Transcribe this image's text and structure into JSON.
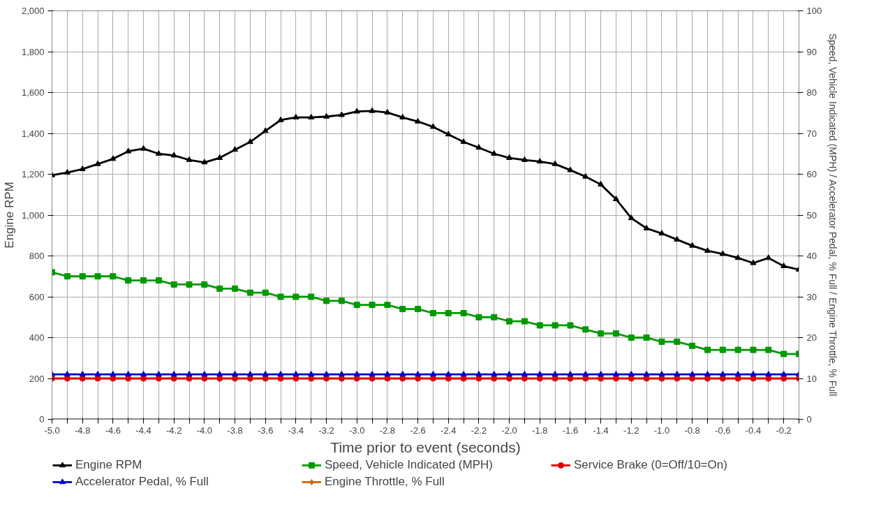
{
  "chart_data": {
    "type": "line",
    "xlabel": "Time prior to event (seconds)",
    "ylabel": "Engine RPM",
    "y2label": "Speed, Vehicle Indicated (MPH) / Accelerator Pedal, % Full / Engine Throttle, % Full",
    "x": [
      -5.0,
      -4.9,
      -4.8,
      -4.7,
      -4.6,
      -4.5,
      -4.4,
      -4.3,
      -4.2,
      -4.1,
      -4.0,
      -3.9,
      -3.8,
      -3.7,
      -3.6,
      -3.5,
      -3.4,
      -3.3,
      -3.2,
      -3.1,
      -3.0,
      -2.9,
      -2.8,
      -2.7,
      -2.6,
      -2.5,
      -2.4,
      -2.3,
      -2.2,
      -2.1,
      -2.0,
      -1.9,
      -1.8,
      -1.7,
      -1.6,
      -1.5,
      -1.4,
      -1.3,
      -1.2,
      -1.1,
      -1.0,
      -0.9,
      -0.8,
      -0.7,
      -0.6,
      -0.5,
      -0.4,
      -0.3,
      -0.2,
      -0.1
    ],
    "series": [
      {
        "name": "Engine RPM",
        "color": "#000000",
        "marker": "triangle",
        "values": [
          1195,
          1208,
          1225,
          1250,
          1275,
          1312,
          1325,
          1300,
          1292,
          1270,
          1258,
          1280,
          1320,
          1358,
          1412,
          1465,
          1478,
          1478,
          1482,
          1490,
          1507,
          1510,
          1502,
          1478,
          1458,
          1432,
          1395,
          1358,
          1330,
          1300,
          1280,
          1270,
          1262,
          1250,
          1220,
          1188,
          1150,
          1078,
          985,
          935,
          910,
          880,
          850,
          825,
          810,
          790,
          765,
          790,
          750,
          733
        ]
      },
      {
        "name": "Speed, Vehicle Indicated (MPH)",
        "color": "#009900",
        "marker": "square",
        "axis": "y2",
        "values": [
          36,
          35,
          35,
          35,
          35,
          34,
          34,
          34,
          33,
          33,
          33,
          32,
          32,
          31,
          31,
          30,
          30,
          30,
          29,
          29,
          28,
          28,
          28,
          27,
          27,
          26,
          26,
          26,
          25,
          25,
          24,
          24,
          23,
          23,
          23,
          22,
          21,
          21,
          20,
          20,
          19,
          19,
          18,
          17,
          17,
          17,
          17,
          17,
          16,
          16
        ]
      },
      {
        "name": "Service Brake (0=Off/10=On)",
        "color": "#dd0000",
        "marker": "circle",
        "axis": "y2",
        "values": [
          10,
          10,
          10,
          10,
          10,
          10,
          10,
          10,
          10,
          10,
          10,
          10,
          10,
          10,
          10,
          10,
          10,
          10,
          10,
          10,
          10,
          10,
          10,
          10,
          10,
          10,
          10,
          10,
          10,
          10,
          10,
          10,
          10,
          10,
          10,
          10,
          10,
          10,
          10,
          10,
          10,
          10,
          10,
          10,
          10,
          10,
          10,
          10,
          10,
          10
        ]
      },
      {
        "name": "Accelerator Pedal, % Full",
        "color": "#0000cc",
        "marker": "triangle",
        "axis": "y2",
        "values": [
          11,
          11,
          11,
          11,
          11,
          11,
          11,
          11,
          11,
          11,
          11,
          11,
          11,
          11,
          11,
          11,
          11,
          11,
          11,
          11,
          11,
          11,
          11,
          11,
          11,
          11,
          11,
          11,
          11,
          11,
          11,
          11,
          11,
          11,
          11,
          11,
          11,
          11,
          11,
          11,
          11,
          11,
          11,
          11,
          11,
          11,
          11,
          11,
          11,
          11
        ]
      },
      {
        "name": "Engine Throttle, % Full",
        "color": "#cc6600",
        "marker": "diamond",
        "axis": "y2",
        "values": [
          null,
          null,
          null,
          null,
          null,
          null,
          null,
          null,
          null,
          null,
          null,
          null,
          null,
          null,
          null,
          null,
          null,
          null,
          null,
          null,
          null,
          null,
          null,
          null,
          null,
          null,
          null,
          null,
          null,
          null,
          null,
          null,
          null,
          null,
          null,
          null,
          null,
          null,
          null,
          null,
          null,
          null,
          null,
          null,
          null,
          null,
          null,
          null,
          null,
          null
        ]
      }
    ],
    "xlim": [
      -5.0,
      -0.1
    ],
    "xticks": [
      {
        "value": -5.0,
        "label": "-5.0"
      },
      {
        "value": -4.9,
        "label": null
      },
      -4.8,
      {
        "value": -4.7,
        "label": null
      },
      -4.6,
      {
        "value": -4.5,
        "label": null
      },
      -4.4,
      {
        "value": -4.3,
        "label": null
      },
      -4.2,
      {
        "value": -4.1,
        "label": null
      },
      {
        "value": -4.0,
        "label": "-4.0"
      },
      {
        "value": -3.9,
        "label": null
      },
      -3.8,
      {
        "value": -3.7,
        "label": null
      },
      -3.6,
      {
        "value": -3.5,
        "label": null
      },
      -3.4,
      {
        "value": -3.3,
        "label": null
      },
      -3.2,
      {
        "value": -3.1,
        "label": null
      },
      {
        "value": -3.0,
        "label": "-3.0"
      },
      {
        "value": -2.9,
        "label": null
      },
      -2.8,
      {
        "value": -2.7,
        "label": null
      },
      -2.6,
      {
        "value": -2.5,
        "label": null
      },
      -2.4,
      {
        "value": -2.3,
        "label": null
      },
      -2.2,
      {
        "value": -2.1,
        "label": null
      },
      {
        "value": -2.0,
        "label": "-2.0"
      },
      {
        "value": -1.9,
        "label": null
      },
      -1.8,
      {
        "value": -1.7,
        "label": null
      },
      -1.6,
      {
        "value": -1.5,
        "label": null
      },
      -1.4,
      {
        "value": -1.3,
        "label": null
      },
      -1.2,
      {
        "value": -1.1,
        "label": null
      },
      {
        "value": -1.0,
        "label": "-1.0"
      },
      {
        "value": -0.9,
        "label": null
      },
      -0.8,
      {
        "value": -0.7,
        "label": null
      },
      -0.6,
      {
        "value": -0.5,
        "label": null
      },
      -0.4,
      {
        "value": -0.3,
        "label": null
      },
      -0.2,
      {
        "value": -0.1,
        "label": null
      }
    ],
    "ylim": [
      0,
      2000
    ],
    "yticks": [
      0,
      200,
      400,
      600,
      800,
      {
        "value": 1000,
        "label": "1,000"
      },
      {
        "value": 1200,
        "label": "1,200"
      },
      {
        "value": 1400,
        "label": "1,400"
      },
      {
        "value": 1600,
        "label": "1,600"
      },
      {
        "value": 1800,
        "label": "1,800"
      },
      {
        "value": 2000,
        "label": "2,000"
      }
    ],
    "y2lim": [
      0,
      100
    ],
    "y2ticks": [
      0,
      10,
      20,
      30,
      40,
      50,
      60,
      70,
      80,
      90,
      100
    ],
    "grid": true,
    "legend": "bottom",
    "line_style": "solid"
  }
}
